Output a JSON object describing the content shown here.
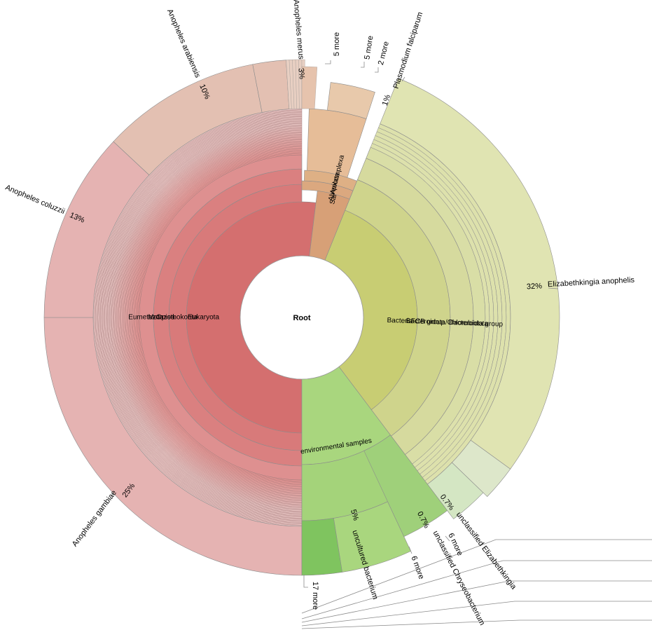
{
  "chart_data": {
    "type": "sunburst",
    "root": {
      "label": "Root"
    },
    "colors": {
      "eukaryota": "#d46f6f",
      "metazoa": "#de9090",
      "sar": "#dba77c",
      "bacteria": "#c8cd73",
      "bacteria_light": "#e0e4b2",
      "environmental": "#a9d67e",
      "environmental_dark": "#7fc45f",
      "species_red": "#e5b3b2",
      "species_salmon": "#e3c0b2",
      "species_orange": "#e8c9ab"
    },
    "rings": {
      "eukaryota": [
        "Eukaryota",
        "Opisthokonta",
        "Metazoa",
        "Eumetazoa"
      ],
      "sar": [
        "Sar",
        "Alveolata",
        "Apicomplexa"
      ],
      "bacteria": [
        "Bacteria",
        "FCB group",
        "Bacteroidota/Chlorobiota group",
        "Bacteroidota"
      ],
      "environmental": [
        "environmental samples"
      ]
    },
    "species": [
      {
        "name": "Anopheles gambiae",
        "percent": "25%",
        "value": 25
      },
      {
        "name": "Anopheles coluzzii",
        "percent": "13%",
        "value": 13
      },
      {
        "name": "Anopheles arabiensis",
        "percent": "10%",
        "value": 10
      },
      {
        "name": "Anopheles merus",
        "percent": "3%",
        "value": 3
      },
      {
        "name": "Plasmodium falciparum",
        "percent": "1%",
        "value": 1
      },
      {
        "name": "Elizabethkingia anophelis",
        "percent": "32%",
        "value": 32
      },
      {
        "name": "unclassified Elizabethkingia",
        "percent": "0.7%",
        "value": 0.7
      },
      {
        "name": "unclassified Chryseobacterium",
        "percent": "0.7%",
        "value": 0.7
      },
      {
        "name": "uncultured bacterium",
        "percent": "5%",
        "value": 5
      }
    ],
    "more_labels": [
      "5 more",
      "5 more",
      "2 more",
      "6 more",
      "6 more",
      "17 more"
    ]
  }
}
